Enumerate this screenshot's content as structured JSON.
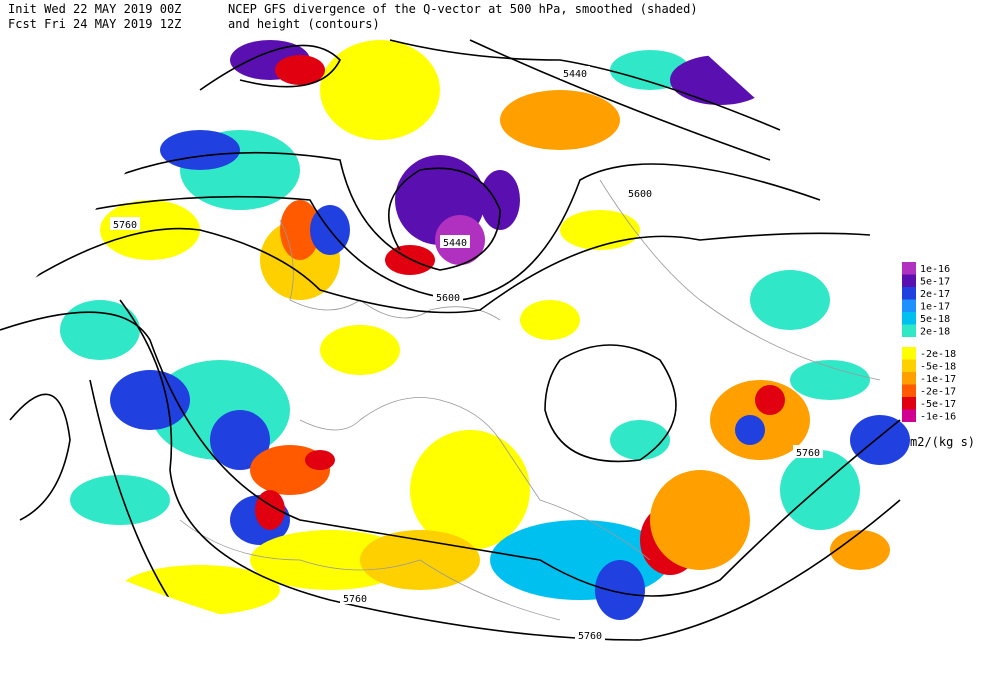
{
  "header": {
    "init": "Init  Wed 22 MAY 2019 00Z",
    "fcst": "Fcst Fri 24 MAY 2019 12Z",
    "title_line1": "NCEP GFS divergence of the Q-vector at 500 hPa, smoothed (shaded)",
    "title_line2": "and height (contours)"
  },
  "contour_labels": [
    "5440",
    "5600",
    "5760",
    "5440",
    "5600",
    "5760",
    "5760",
    "5760"
  ],
  "colorbar": {
    "levels": [
      {
        "label": "1e-16",
        "color": "#b030c0"
      },
      {
        "label": "5e-17",
        "color": "#5a10b0"
      },
      {
        "label": "2e-17",
        "color": "#2040e0"
      },
      {
        "label": "1e-17",
        "color": "#1e90ff"
      },
      {
        "label": "5e-18",
        "color": "#00c0f0"
      },
      {
        "label": "2e-18",
        "color": "#30e8c8"
      },
      {
        "label": "-2e-18",
        "color": "#ffff00"
      },
      {
        "label": "-5e-18",
        "color": "#ffd000"
      },
      {
        "label": "-1e-17",
        "color": "#ffa000"
      },
      {
        "label": "-2e-17",
        "color": "#ff5a00"
      },
      {
        "label": "-5e-17",
        "color": "#e00010"
      },
      {
        "label": "-1e-16",
        "color": "#d00090"
      }
    ],
    "unit": "m2/(kg s)"
  }
}
